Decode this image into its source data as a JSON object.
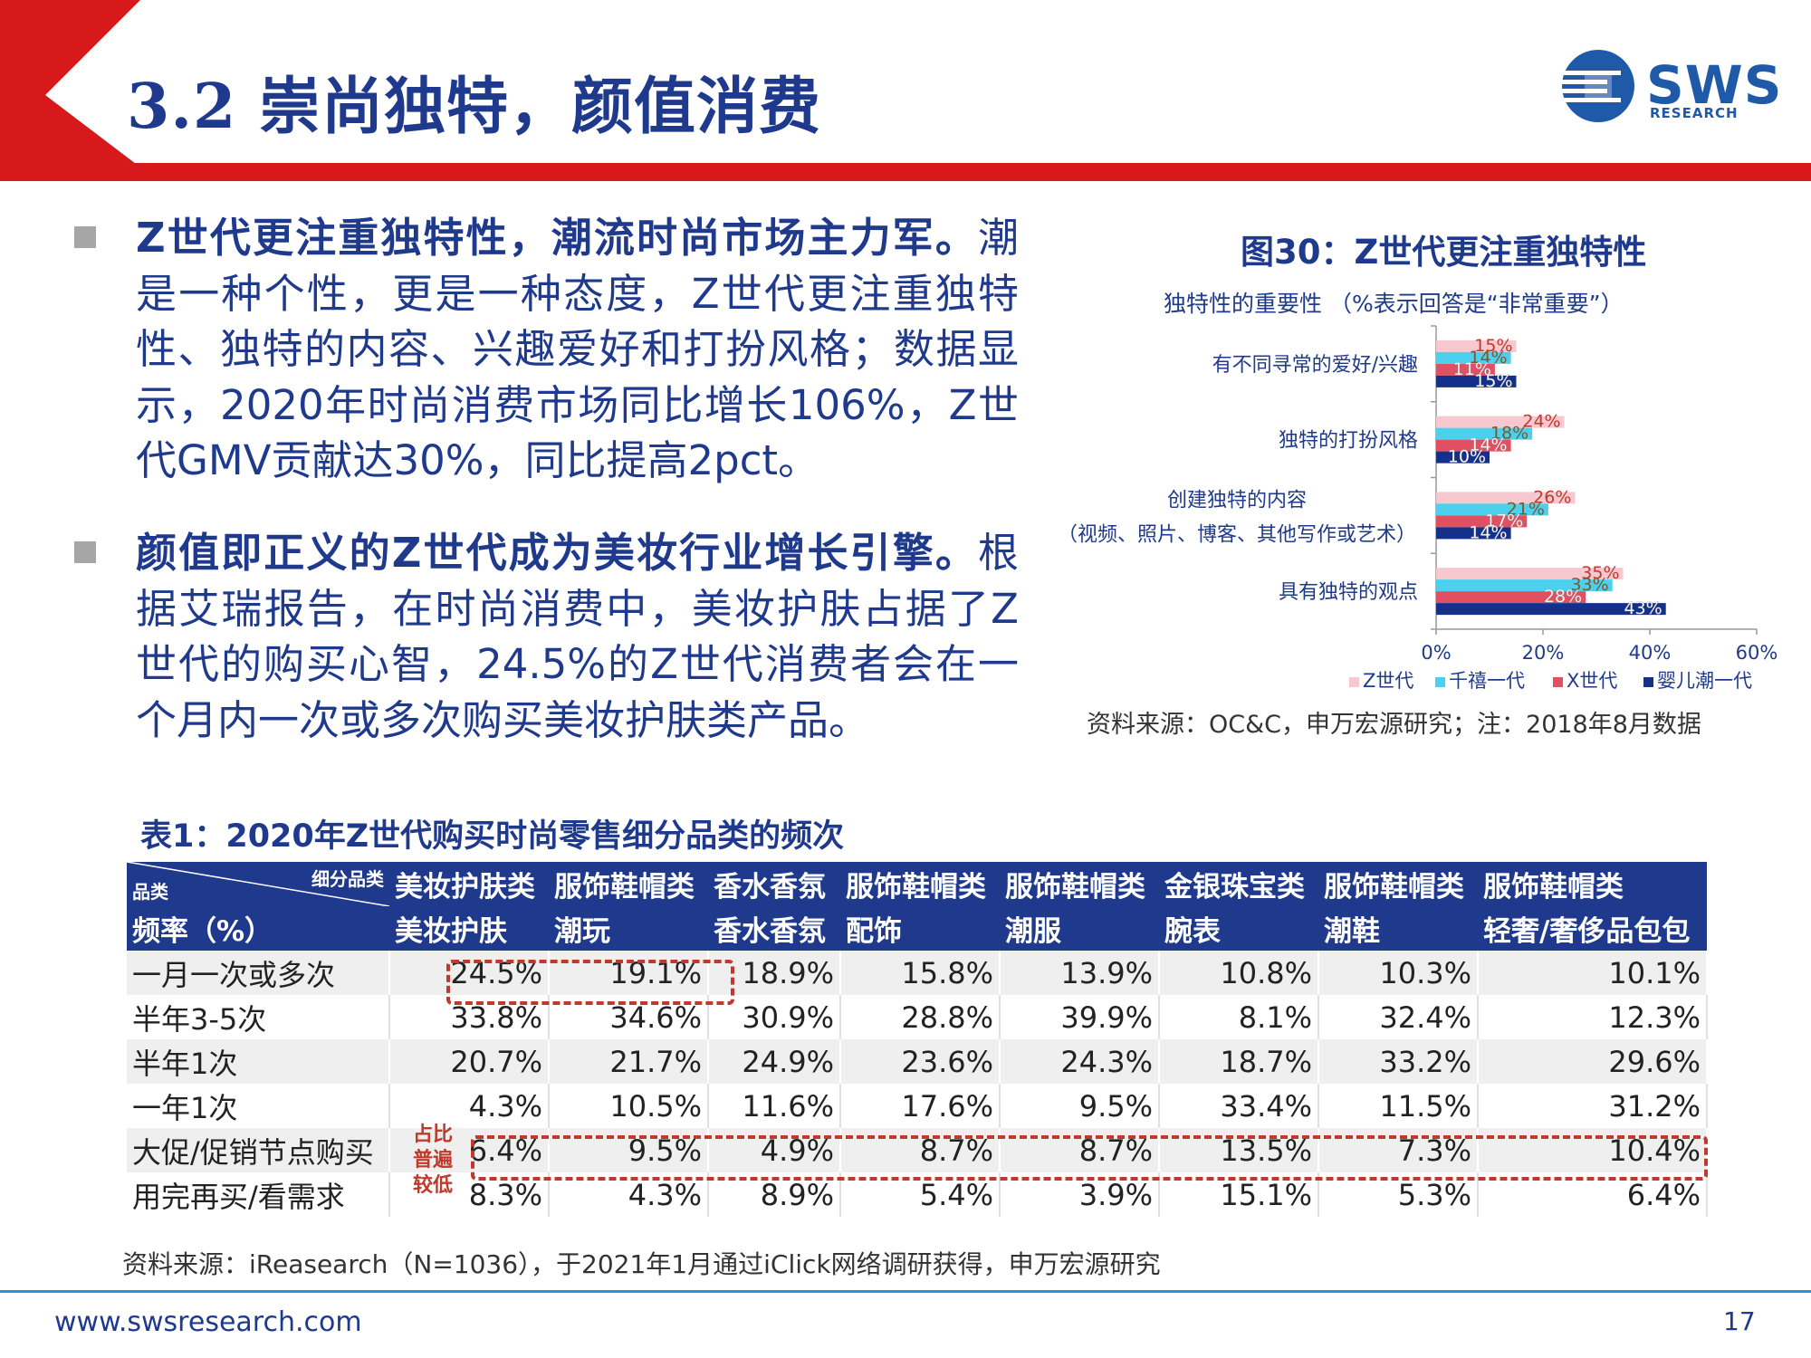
{
  "slide": {
    "title": "3.2 崇尚独特，颜值消费",
    "logo_text": "SWS",
    "logo_sub": "RESEARCH",
    "accent_red": "#d7191c",
    "accent_blue": "#1f3a8c"
  },
  "bullets": [
    {
      "bold": "Z世代更注重独特性，潮流时尚市场主力军。",
      "text": "潮是一种个性，更是一种态度，Z世代更注重独特性、独特的内容、兴趣爱好和打扮风格；数据显示，2020年时尚消费市场同比增长106%，Z世代GMV贡献达30%，同比提高2pct。"
    },
    {
      "bold": "颜值即正义的Z世代成为美妆行业增长引擎。",
      "text": "根据艾瑞报告，在时尚消费中，美妆护肤占据了Z世代的购买心智，24.5%的Z世代消费者会在一个月内一次或多次购买美妆护肤类产品。"
    }
  ],
  "figure": {
    "title": "图30：Z世代更注重独特性",
    "source": "资料来源：OC&C，申万宏源研究；注：2018年8月数据"
  },
  "chart_data": {
    "type": "bar",
    "orientation": "horizontal",
    "subtitle": "独特性的重要性 （%表示回答是“非常重要”）",
    "categories": [
      "有不同寻常的爱好/兴趣",
      "独特的打扮风格",
      "创建独特的内容\n（视频、照片、博客、其他写作或艺术）",
      "具有独特的观点"
    ],
    "series": [
      {
        "name": "Z世代",
        "color": "#f7c8cf",
        "values": [
          15,
          24,
          26,
          35
        ]
      },
      {
        "name": "千禧一代",
        "color": "#4dcfee",
        "values": [
          14,
          18,
          21,
          33
        ]
      },
      {
        "name": "X世代",
        "color": "#e05060",
        "values": [
          11,
          14,
          17,
          28
        ]
      },
      {
        "name": "婴儿潮一代",
        "color": "#14308a",
        "values": [
          15,
          10,
          14,
          43
        ]
      }
    ],
    "xlim": [
      0,
      60
    ],
    "xticks": [
      "0%",
      "20%",
      "40%",
      "60%"
    ],
    "legend_position": "bottom"
  },
  "table": {
    "title": "表1：2020年Z世代购买时尚零售细分品类的频次",
    "corner_top": "细分品类",
    "corner_bottom": "品类",
    "header_row1": [
      "美妆护肤类",
      "服饰鞋帽类",
      "香水香氛",
      "服饰鞋帽类",
      "服饰鞋帽类",
      "金银珠宝类",
      "服饰鞋帽类",
      "服饰鞋帽类"
    ],
    "header_row2_label": "频率（%）",
    "header_row2": [
      "美妆护肤",
      "潮玩",
      "香水香氛",
      "配饰",
      "潮服",
      "腕表",
      "潮鞋",
      "轻奢/奢侈品包包"
    ],
    "rows": [
      {
        "label": "一月一次或多次",
        "values": [
          "24.5%",
          "19.1%",
          "18.9%",
          "15.8%",
          "13.9%",
          "10.8%",
          "10.3%",
          "10.1%"
        ]
      },
      {
        "label": "半年3-5次",
        "values": [
          "33.8%",
          "34.6%",
          "30.9%",
          "28.8%",
          "39.9%",
          "8.1%",
          "32.4%",
          "12.3%"
        ]
      },
      {
        "label": "半年1次",
        "values": [
          "20.7%",
          "21.7%",
          "24.9%",
          "23.6%",
          "24.3%",
          "18.7%",
          "33.2%",
          "29.6%"
        ]
      },
      {
        "label": "一年1次",
        "values": [
          "4.3%",
          "10.5%",
          "11.6%",
          "17.6%",
          "9.5%",
          "33.4%",
          "11.5%",
          "31.2%"
        ]
      },
      {
        "label": "大促/促销节点购买",
        "values": [
          "6.4%",
          "9.5%",
          "4.9%",
          "8.7%",
          "8.7%",
          "13.5%",
          "7.3%",
          "10.4%"
        ]
      },
      {
        "label": "用完再买/看需求",
        "values": [
          "8.3%",
          "4.3%",
          "8.9%",
          "5.4%",
          "3.9%",
          "15.1%",
          "5.3%",
          "6.4%"
        ]
      }
    ],
    "annotation": "占比普遍较低",
    "source": "资料来源：iReasearch（N=1036），于2021年1月通过iClick网络调研获得，申万宏源研究"
  },
  "footer": {
    "url": "www.swsresearch.com",
    "page": "17"
  }
}
